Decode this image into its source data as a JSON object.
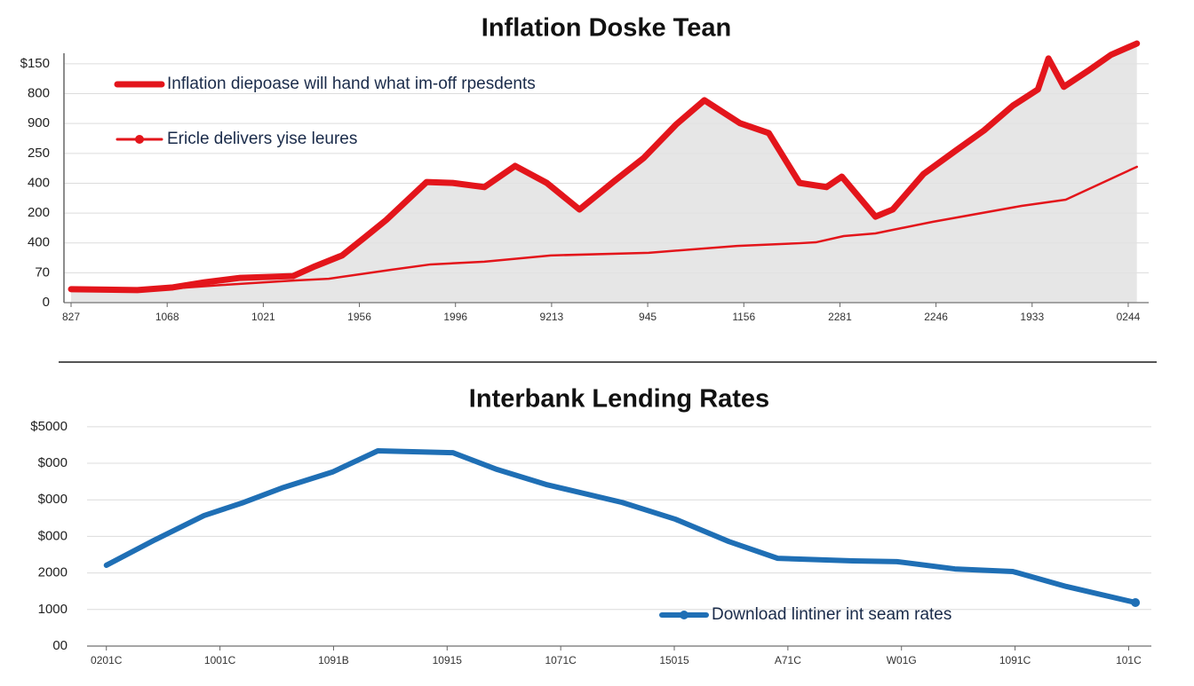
{
  "chart_data": [
    {
      "type": "area",
      "title": "Inflation Doske Tean",
      "legend": "upper left",
      "grid": true,
      "xlim": [
        -0.074,
        11.213
      ],
      "xticks": [
        {
          "value": 0,
          "label": "827"
        },
        {
          "value": 1,
          "label": "1068"
        },
        {
          "value": 2,
          "label": "1021"
        },
        {
          "value": 3,
          "label": "1956"
        },
        {
          "value": 4,
          "label": "1996"
        },
        {
          "value": 5,
          "label": "9213"
        },
        {
          "value": 6,
          "label": "945"
        },
        {
          "value": 7,
          "label": "1156"
        },
        {
          "value": 8,
          "label": "2281"
        },
        {
          "value": 9,
          "label": "2246"
        },
        {
          "value": 10,
          "label": "1933"
        },
        {
          "value": 11,
          "label": "0244"
        }
      ],
      "ylim": [
        0,
        8.8
      ],
      "yticks": [
        0,
        {
          "value": 1,
          "label": "70"
        },
        {
          "value": 2,
          "label": "400"
        },
        {
          "value": 3,
          "label": "200"
        },
        {
          "value": 4,
          "label": "400"
        },
        {
          "value": 5,
          "label": "250"
        },
        {
          "value": 6,
          "label": "900"
        },
        {
          "value": 7,
          "label": "800"
        },
        {
          "value": 8,
          "label": "$150"
        }
      ],
      "series": [
        {
          "name": "Inflation diepoase will hand what im-off rpesdents",
          "color": "#e3151b",
          "linewidth": 7,
          "fill": "#e2e2e2",
          "x": [
            0,
            0.69,
            1.06,
            1.39,
            1.76,
            2.31,
            2.54,
            2.82,
            3.05,
            3.28,
            3.7,
            3.97,
            4.3,
            4.62,
            4.95,
            5.29,
            5.64,
            5.96,
            6.3,
            6.59,
            6.96,
            7.26,
            7.58,
            7.86,
            8.02,
            8.37,
            8.55,
            8.87,
            9.2,
            9.5,
            9.8,
            10.06,
            10.17,
            10.33,
            10.58,
            10.82,
            11.09
          ],
          "values": [
            0.45,
            0.42,
            0.51,
            0.68,
            0.83,
            0.89,
            1.22,
            1.58,
            2.17,
            2.77,
            4.04,
            4.01,
            3.87,
            4.58,
            4.01,
            3.12,
            4.04,
            4.85,
            5.98,
            6.78,
            6.01,
            5.68,
            4.01,
            3.87,
            4.22,
            2.88,
            3.12,
            4.31,
            5.08,
            5.77,
            6.6,
            7.14,
            8.18,
            7.23,
            7.76,
            8.3,
            8.68
          ]
        },
        {
          "name": "Ericle delivers yise leures",
          "color": "#e3151b",
          "linewidth": 2.5,
          "x": [
            0,
            0.69,
            1.57,
            2.31,
            2.68,
            3.33,
            3.74,
            4.3,
            4.99,
            6.01,
            6.93,
            7.58,
            7.75,
            8.04,
            8.37,
            8.97,
            9.89,
            10.35,
            11.09
          ],
          "values": [
            0.45,
            0.39,
            0.59,
            0.74,
            0.8,
            1.1,
            1.28,
            1.37,
            1.58,
            1.67,
            1.9,
            1.99,
            2.02,
            2.23,
            2.32,
            2.71,
            3.24,
            3.45,
            4.55
          ]
        }
      ]
    },
    {
      "type": "line",
      "title": "Interbank Lending Rates",
      "legend": "lower right",
      "grid": true,
      "xlim": [
        -0.17,
        9.2
      ],
      "xticks": [
        {
          "value": 0,
          "label": "0201C"
        },
        {
          "value": 1,
          "label": "1001C"
        },
        {
          "value": 2,
          "label": "1091B"
        },
        {
          "value": 3,
          "label": "10915"
        },
        {
          "value": 4,
          "label": "1071C"
        },
        {
          "value": 5,
          "label": "15015"
        },
        {
          "value": 6,
          "label": "A71C"
        },
        {
          "value": 7,
          "label": "W01G"
        },
        {
          "value": 8,
          "label": "1091C"
        },
        {
          "value": 9,
          "label": "101C"
        }
      ],
      "ylim": [
        0,
        6.2
      ],
      "yticks": [
        {
          "value": 0,
          "label": "00"
        },
        {
          "value": 1,
          "label": "1000"
        },
        {
          "value": 2,
          "label": "2000"
        },
        {
          "value": 3,
          "label": "$000"
        },
        {
          "value": 4,
          "label": "$000"
        },
        {
          "value": 5,
          "label": "$000"
        },
        {
          "value": 6,
          "label": "$5000"
        }
      ],
      "series": [
        {
          "name": "Download lintiner int seam rates",
          "color": "#1f6fb5",
          "linewidth": 6,
          "x": [
            0,
            0.43,
            0.86,
            1.21,
            1.56,
            1.99,
            2.39,
            3.05,
            3.44,
            3.87,
            4.54,
            5.01,
            5.48,
            5.91,
            6.57,
            6.96,
            7.47,
            7.98,
            8.45,
            9.06
          ],
          "values": [
            2.21,
            2.91,
            3.57,
            3.93,
            4.34,
            4.76,
            5.34,
            5.29,
            4.83,
            4.42,
            3.93,
            3.47,
            2.86,
            2.4,
            2.33,
            2.31,
            2.11,
            2.04,
            1.63,
            1.19
          ]
        }
      ]
    }
  ]
}
